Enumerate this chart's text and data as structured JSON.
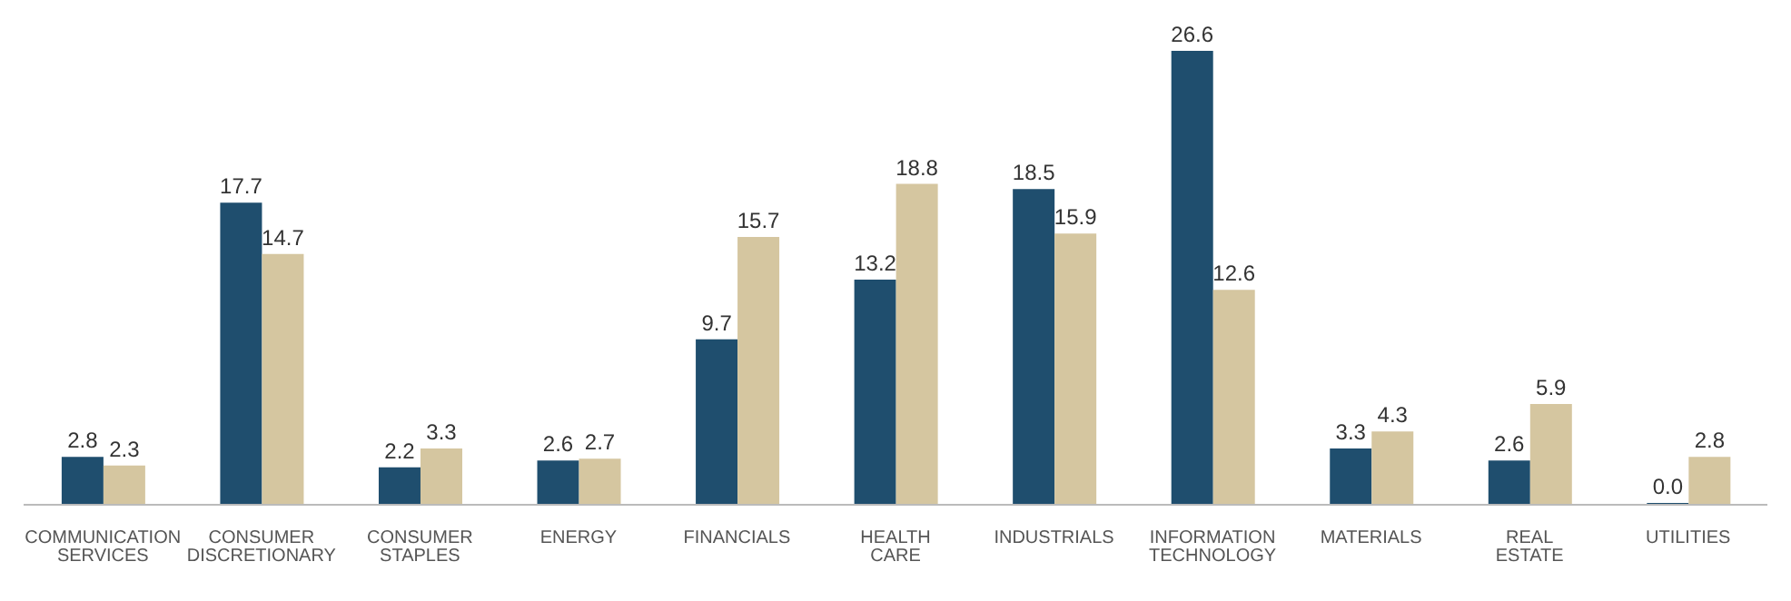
{
  "chart_data": {
    "type": "bar",
    "categories": [
      "COMMUNICATION SERVICES",
      "CONSUMER DISCRETIONARY",
      "CONSUMER STAPLES",
      "ENERGY",
      "FINANCIALS",
      "HEALTH CARE",
      "INDUSTRIALS",
      "INFORMATION TECHNOLOGY",
      "MATERIALS",
      "REAL ESTATE",
      "UTILITIES"
    ],
    "series": [
      {
        "color": "#1f4e6e",
        "values": [
          2.8,
          17.7,
          2.2,
          2.6,
          9.7,
          13.2,
          18.5,
          26.6,
          3.3,
          2.6,
          0.0
        ],
        "value_labels": [
          "2.8",
          "17.7",
          "2.2",
          "2.6",
          "9.7",
          "13.2",
          "18.5",
          "26.6",
          "3.3",
          "2.6",
          "0.0"
        ]
      },
      {
        "color": "#d5c6a0",
        "values": [
          2.3,
          14.7,
          3.3,
          2.7,
          15.7,
          18.8,
          15.9,
          12.6,
          4.3,
          5.9,
          2.8
        ],
        "value_labels": [
          "2.3",
          "14.7",
          "3.3",
          "2.7",
          "15.7",
          "18.8",
          "15.9",
          "12.6",
          "4.3",
          "5.9",
          "2.8"
        ]
      }
    ],
    "grid": false,
    "legend": false
  }
}
